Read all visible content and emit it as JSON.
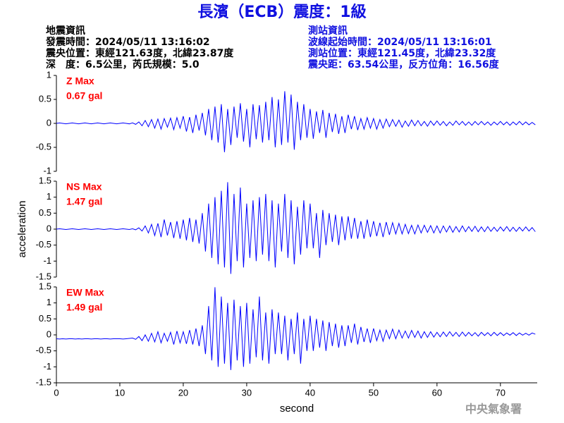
{
  "header": {
    "title": "長濱（ECB）震度：1級",
    "left_lines": [
      "地震資訊",
      "發震時間：2024/05/11 13:16:02",
      "震央位置：東經121.63度，北緯23.87度",
      "深　度：6.5公里，芮氏規模：5.0"
    ],
    "right_lines": [
      "測站資訊",
      "波線起始時間：2024/05/11 13:16:01",
      "測站位置：東經121.45度，北緯23.32度",
      "震央距：63.54公里，反方位角：16.56度"
    ]
  },
  "footer": "中央氣象署",
  "chart_data": [
    {
      "type": "line",
      "annotations": [
        "Z Max",
        "0.67 gal"
      ],
      "color": "#0000ff",
      "xlim": [
        0,
        75.8
      ],
      "ylim": [
        -1,
        1
      ],
      "yticks": [
        -1,
        -0.5,
        0,
        0.5,
        1
      ],
      "x": [
        0,
        0.5,
        1,
        1.5,
        2,
        2.5,
        3,
        3.5,
        4,
        4.5,
        5,
        5.5,
        6,
        6.5,
        7,
        7.5,
        8,
        8.5,
        9,
        9.5,
        10,
        10.5,
        11,
        11.5,
        12,
        12.5,
        13,
        13.5,
        14,
        14.5,
        15,
        15.5,
        16,
        16.5,
        17,
        17.5,
        18,
        18.5,
        19,
        19.5,
        20,
        20.5,
        21,
        21.5,
        22,
        22.5,
        23,
        23.5,
        24,
        24.5,
        25,
        25.5,
        26,
        26.5,
        27,
        27.5,
        28,
        28.5,
        29,
        29.5,
        30,
        30.5,
        31,
        31.5,
        32,
        32.5,
        33,
        33.5,
        34,
        34.5,
        35,
        35.5,
        36,
        36.5,
        37,
        37.5,
        38,
        38.5,
        39,
        39.5,
        40,
        40.5,
        41,
        41.5,
        42,
        42.5,
        43,
        43.5,
        44,
        44.5,
        45,
        45.5,
        46,
        46.5,
        47,
        47.5,
        48,
        48.5,
        49,
        49.5,
        50,
        50.5,
        51,
        51.5,
        52,
        52.5,
        53,
        53.5,
        54,
        54.5,
        55,
        55.5,
        56,
        56.5,
        57,
        57.5,
        58,
        58.5,
        59,
        59.5,
        60,
        60.5,
        61,
        61.5,
        62,
        62.5,
        63,
        63.5,
        64,
        64.5,
        65,
        65.5,
        66,
        66.5,
        67,
        67.5,
        68,
        68.5,
        69,
        69.5,
        70,
        70.5,
        71,
        71.5,
        72,
        72.5,
        73,
        73.5,
        74,
        74.5,
        75,
        75.5
      ],
      "values": [
        0,
        0.01,
        0,
        -0.01,
        0,
        0.01,
        0,
        -0.01,
        0,
        0.01,
        0,
        -0.01,
        0,
        0.01,
        0,
        -0.01,
        0,
        0.01,
        0,
        -0.01,
        0,
        0.01,
        0,
        -0.01,
        0.01,
        -0.02,
        0.03,
        -0.05,
        0.06,
        -0.07,
        0.08,
        -0.1,
        0.09,
        -0.12,
        0.1,
        -0.08,
        0.11,
        -0.13,
        0.12,
        -0.1,
        0.15,
        -0.17,
        0.13,
        -0.2,
        0.18,
        -0.15,
        0.22,
        -0.25,
        0.3,
        -0.35,
        0.35,
        -0.4,
        0.4,
        -0.6,
        0.3,
        -0.45,
        0.35,
        -0.3,
        0.42,
        -0.38,
        0.3,
        -0.5,
        0.4,
        -0.33,
        0.38,
        -0.4,
        0.45,
        -0.35,
        0.55,
        -0.5,
        0.5,
        -0.45,
        0.67,
        -0.4,
        0.6,
        -0.55,
        0.45,
        -0.35,
        0.4,
        -0.3,
        0.3,
        -0.32,
        0.25,
        -0.2,
        0.28,
        -0.3,
        0.22,
        -0.18,
        0.2,
        -0.22,
        0.15,
        -0.2,
        0.18,
        -0.12,
        0.15,
        -0.14,
        0.1,
        -0.12,
        0.12,
        -0.1,
        0.1,
        -0.12,
        0.08,
        -0.1,
        0.09,
        -0.07,
        0.08,
        -0.06,
        0.07,
        -0.08,
        0.05,
        -0.06,
        0.07,
        -0.05,
        0.06,
        -0.05,
        0.04,
        -0.06,
        0.05,
        -0.04,
        0.05,
        -0.04,
        0.04,
        -0.05,
        0.03,
        -0.04,
        0.05,
        -0.03,
        0.04,
        -0.04,
        0.03,
        -0.04,
        0.04,
        -0.03,
        0.04,
        -0.03,
        0.03,
        -0.04,
        0.03,
        -0.03,
        0.04,
        -0.03,
        0.03,
        -0.04,
        0.03,
        -0.03,
        0.04,
        -0.03,
        0.03,
        -0.03,
        0.02,
        -0.03
      ]
    },
    {
      "type": "line",
      "annotations": [
        "NS Max",
        "1.47 gal"
      ],
      "color": "#0000ff",
      "ylabel": "acceleration",
      "xlim": [
        0,
        75.8
      ],
      "ylim": [
        -1.5,
        1.5
      ],
      "yticks": [
        -1.5,
        -1,
        -0.5,
        0,
        0.5,
        1,
        1.5
      ],
      "x": [
        0,
        0.5,
        1,
        1.5,
        2,
        2.5,
        3,
        3.5,
        4,
        4.5,
        5,
        5.5,
        6,
        6.5,
        7,
        7.5,
        8,
        8.5,
        9,
        9.5,
        10,
        10.5,
        11,
        11.5,
        12,
        12.5,
        13,
        13.5,
        14,
        14.5,
        15,
        15.5,
        16,
        16.5,
        17,
        17.5,
        18,
        18.5,
        19,
        19.5,
        20,
        20.5,
        21,
        21.5,
        22,
        22.5,
        23,
        23.5,
        24,
        24.5,
        25,
        25.5,
        26,
        26.5,
        27,
        27.5,
        28,
        28.5,
        29,
        29.5,
        30,
        30.5,
        31,
        31.5,
        32,
        32.5,
        33,
        33.5,
        34,
        34.5,
        35,
        35.5,
        36,
        36.5,
        37,
        37.5,
        38,
        38.5,
        39,
        39.5,
        40,
        40.5,
        41,
        41.5,
        42,
        42.5,
        43,
        43.5,
        44,
        44.5,
        45,
        45.5,
        46,
        46.5,
        47,
        47.5,
        48,
        48.5,
        49,
        49.5,
        50,
        50.5,
        51,
        51.5,
        52,
        52.5,
        53,
        53.5,
        54,
        54.5,
        55,
        55.5,
        56,
        56.5,
        57,
        57.5,
        58,
        58.5,
        59,
        59.5,
        60,
        60.5,
        61,
        61.5,
        62,
        62.5,
        63,
        63.5,
        64,
        64.5,
        65,
        65.5,
        66,
        66.5,
        67,
        67.5,
        68,
        68.5,
        69,
        69.5,
        70,
        70.5,
        71,
        71.5,
        72,
        72.5,
        73,
        73.5,
        74,
        74.5,
        75,
        75.5
      ],
      "values": [
        0,
        0.01,
        0,
        -0.01,
        0,
        0.01,
        0,
        -0.01,
        0,
        0.01,
        0,
        -0.01,
        0,
        0.01,
        0,
        -0.01,
        0,
        0.01,
        0,
        -0.01,
        0,
        0.01,
        0,
        -0.01,
        0.01,
        -0.02,
        0.04,
        -0.06,
        0.1,
        -0.12,
        0.15,
        -0.2,
        0.18,
        -0.25,
        0.3,
        -0.2,
        0.22,
        -0.28,
        0.25,
        -0.3,
        0.3,
        -0.35,
        0.35,
        -0.4,
        0.3,
        -0.45,
        0.5,
        -0.7,
        0.8,
        -0.9,
        1.0,
        -1.1,
        1.2,
        -1.2,
        1.47,
        -1.4,
        1.1,
        -1.0,
        1.3,
        -1.2,
        0.8,
        -0.9,
        0.9,
        -1.0,
        1.0,
        -0.8,
        1.1,
        -1.0,
        0.9,
        -1.2,
        0.8,
        -0.7,
        1.1,
        -0.9,
        0.9,
        -1.1,
        0.7,
        -0.8,
        0.9,
        -0.6,
        0.8,
        -0.6,
        0.5,
        -0.9,
        0.6,
        -0.5,
        0.5,
        -0.4,
        0.45,
        -0.5,
        0.4,
        -0.35,
        0.4,
        -0.3,
        0.35,
        -0.3,
        0.25,
        -0.3,
        0.3,
        -0.25,
        0.25,
        -0.22,
        0.2,
        -0.25,
        0.22,
        -0.18,
        0.2,
        -0.15,
        0.18,
        -0.15,
        0.15,
        -0.14,
        0.12,
        -0.15,
        0.13,
        -0.12,
        0.12,
        -0.1,
        0.11,
        -0.12,
        0.1,
        -0.12,
        0.1,
        -0.09,
        0.1,
        -0.1,
        0.08,
        -0.09,
        0.1,
        -0.08,
        0.08,
        -0.07,
        0.09,
        -0.08,
        0.07,
        -0.08,
        0.08,
        -0.07,
        0.06,
        -0.07,
        0.07,
        -0.06,
        0.08,
        -0.07,
        0.06,
        -0.07,
        0.06,
        -0.06,
        0.07,
        -0.06,
        0.05,
        -0.08
      ]
    },
    {
      "type": "line",
      "annotations": [
        "EW Max",
        "1.49 gal"
      ],
      "color": "#0000ff",
      "xlabel": "second",
      "xlim": [
        0,
        75.8
      ],
      "xticks": [
        0,
        10,
        20,
        30,
        40,
        50,
        60,
        70
      ],
      "ylim": [
        -1.5,
        1.5
      ],
      "yticks": [
        -1.5,
        -1,
        -0.5,
        0,
        0.5,
        1,
        1.5
      ],
      "x": [
        0,
        0.5,
        1,
        1.5,
        2,
        2.5,
        3,
        3.5,
        4,
        4.5,
        5,
        5.5,
        6,
        6.5,
        7,
        7.5,
        8,
        8.5,
        9,
        9.5,
        10,
        10.5,
        11,
        11.5,
        12,
        12.5,
        13,
        13.5,
        14,
        14.5,
        15,
        15.5,
        16,
        16.5,
        17,
        17.5,
        18,
        18.5,
        19,
        19.5,
        20,
        20.5,
        21,
        21.5,
        22,
        22.5,
        23,
        23.5,
        24,
        24.5,
        25,
        25.5,
        26,
        26.5,
        27,
        27.5,
        28,
        28.5,
        29,
        29.5,
        30,
        30.5,
        31,
        31.5,
        32,
        32.5,
        33,
        33.5,
        34,
        34.5,
        35,
        35.5,
        36,
        36.5,
        37,
        37.5,
        38,
        38.5,
        39,
        39.5,
        40,
        40.5,
        41,
        41.5,
        42,
        42.5,
        43,
        43.5,
        44,
        44.5,
        45,
        45.5,
        46,
        46.5,
        47,
        47.5,
        48,
        48.5,
        49,
        49.5,
        50,
        50.5,
        51,
        51.5,
        52,
        52.5,
        53,
        53.5,
        54,
        54.5,
        55,
        55.5,
        56,
        56.5,
        57,
        57.5,
        58,
        58.5,
        59,
        59.5,
        60,
        60.5,
        61,
        61.5,
        62,
        62.5,
        63,
        63.5,
        64,
        64.5,
        65,
        65.5,
        66,
        66.5,
        67,
        67.5,
        68,
        68.5,
        69,
        69.5,
        70,
        70.5,
        71,
        71.5,
        72,
        72.5,
        73,
        73.5,
        74,
        74.5,
        75,
        75.5
      ],
      "values": [
        -0.12,
        -0.13,
        -0.12,
        -0.13,
        -0.12,
        -0.12,
        -0.13,
        -0.12,
        -0.13,
        -0.12,
        -0.12,
        -0.13,
        -0.12,
        -0.12,
        -0.13,
        -0.12,
        -0.12,
        -0.13,
        -0.12,
        -0.12,
        -0.12,
        -0.13,
        -0.12,
        -0.11,
        -0.1,
        -0.14,
        -0.05,
        -0.18,
        0.0,
        -0.2,
        0.05,
        -0.22,
        0.1,
        -0.25,
        0.05,
        -0.2,
        0.08,
        -0.3,
        0.12,
        -0.25,
        0.1,
        -0.28,
        0.15,
        -0.3,
        0.2,
        -0.35,
        0.3,
        -0.6,
        0.9,
        -0.8,
        1.49,
        -1.0,
        1.2,
        -0.9,
        1.0,
        -1.1,
        1.1,
        -0.8,
        0.9,
        -1.0,
        1.0,
        -0.9,
        0.8,
        -0.7,
        1.2,
        -0.8,
        0.7,
        -0.9,
        0.8,
        -0.6,
        0.7,
        -0.6,
        0.6,
        -0.8,
        0.5,
        -0.6,
        0.7,
        -0.9,
        0.5,
        -0.5,
        0.6,
        -0.5,
        0.5,
        -0.4,
        0.45,
        -0.5,
        0.4,
        -0.35,
        0.35,
        -0.4,
        0.3,
        -0.35,
        0.3,
        -0.25,
        0.35,
        -0.3,
        0.25,
        -0.22,
        0.2,
        -0.25,
        0.2,
        -0.18,
        0.15,
        -0.2,
        0.15,
        -0.12,
        0.18,
        -0.12,
        0.15,
        -0.1,
        0.12,
        -0.1,
        0.14,
        -0.08,
        0.12,
        -0.1,
        0.1,
        -0.08,
        0.1,
        -0.07,
        0.08,
        -0.06,
        0.09,
        -0.05,
        0.1,
        -0.04,
        0.08,
        -0.05,
        0.09,
        -0.04,
        0.08,
        -0.03,
        0.07,
        -0.04,
        0.08,
        -0.02,
        0.07,
        -0.03,
        0.08,
        -0.02,
        0.07,
        -0.02,
        0.06,
        -0.01,
        0.07,
        -0.02,
        0.06,
        -0.01,
        0.05,
        -0.01,
        0.06,
        0.02
      ]
    }
  ]
}
